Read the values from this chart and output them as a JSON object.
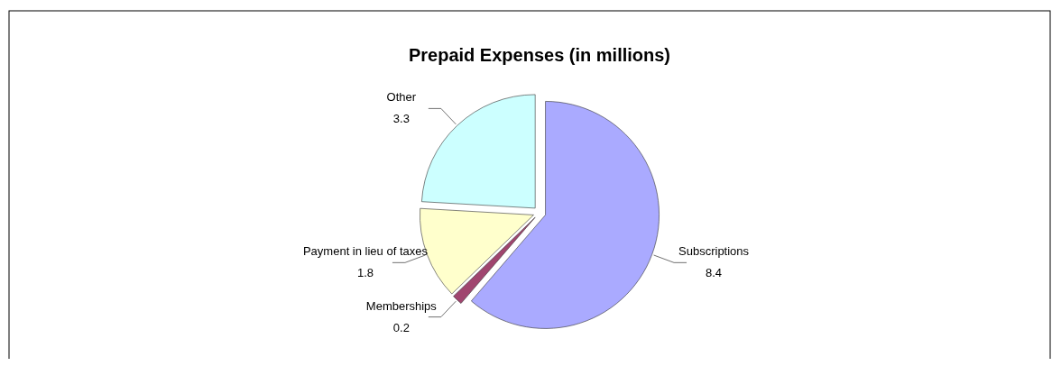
{
  "chart_data": {
    "type": "pie",
    "title": "Prepaid Expenses (in millions)",
    "categories": [
      "Subscriptions",
      "Memberships",
      "Payment in lieu of taxes",
      "Other"
    ],
    "values": [
      8.4,
      0.2,
      1.8,
      3.3
    ],
    "colors": [
      "#aaaaff",
      "#a0456f",
      "#ffffcc",
      "#ccffff"
    ],
    "data_labels": true
  }
}
